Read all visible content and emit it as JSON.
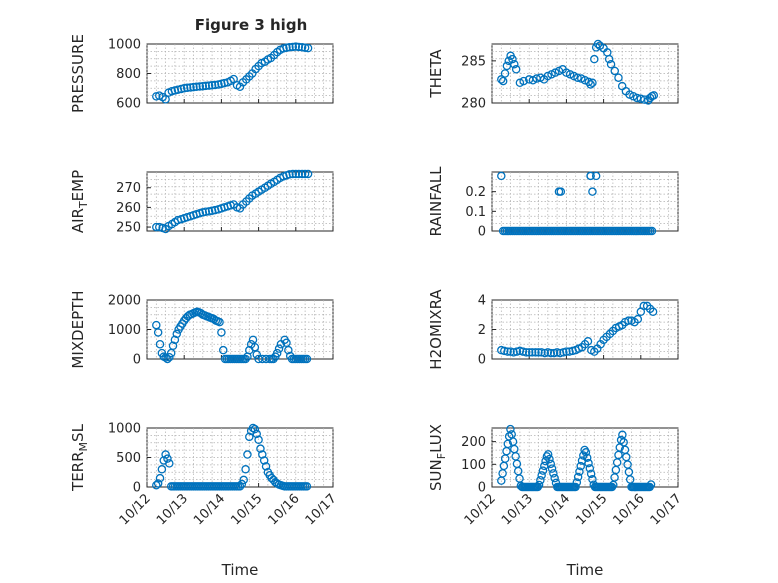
{
  "figure_title": "Figure 3 high",
  "x_axis": {
    "label": "Time",
    "ticks": [
      "10/12",
      "10/13",
      "10/14",
      "10/15",
      "10/16",
      "10/17"
    ],
    "range_days": [
      12,
      17
    ]
  },
  "chart_data": [
    {
      "type": "scatter",
      "id": "pressure",
      "ylabel": "PRESSURE",
      "ylim": [
        600,
        1000
      ],
      "yticks": [
        600,
        800,
        1000
      ],
      "marker_color": "#0072bd",
      "grid": "on",
      "x": [
        12.25,
        12.33,
        12.42,
        12.5,
        12.58,
        12.67,
        12.75,
        12.83,
        12.92,
        13.0,
        13.08,
        13.17,
        13.25,
        13.33,
        13.42,
        13.5,
        13.58,
        13.67,
        13.75,
        13.83,
        13.92,
        14.0,
        14.08,
        14.17,
        14.25,
        14.33,
        14.42,
        14.5,
        14.58,
        14.67,
        14.75,
        14.83,
        14.92,
        15.0,
        15.08,
        15.17,
        15.25,
        15.33,
        15.42,
        15.5,
        15.58,
        15.67,
        15.75,
        15.83,
        15.92,
        16.0,
        16.08,
        16.17,
        16.25,
        16.33
      ],
      "y": [
        645,
        650,
        640,
        625,
        670,
        680,
        685,
        690,
        695,
        700,
        703,
        705,
        708,
        710,
        712,
        714,
        716,
        718,
        720,
        722,
        725,
        730,
        735,
        740,
        750,
        762,
        720,
        710,
        740,
        760,
        780,
        800,
        830,
        850,
        870,
        880,
        895,
        905,
        925,
        945,
        960,
        970,
        975,
        978,
        980,
        982,
        980,
        978,
        975,
        972
      ]
    },
    {
      "type": "scatter",
      "id": "theta",
      "ylabel": "THETA",
      "ylim": [
        280,
        287
      ],
      "yticks": [
        280,
        285
      ],
      "marker_color": "#0072bd",
      "grid": "on",
      "x": [
        12.25,
        12.3,
        12.35,
        12.4,
        12.45,
        12.5,
        12.55,
        12.6,
        12.65,
        12.75,
        12.85,
        13.0,
        13.1,
        13.2,
        13.3,
        13.4,
        13.5,
        13.6,
        13.7,
        13.8,
        13.9,
        14.0,
        14.1,
        14.2,
        14.3,
        14.4,
        14.5,
        14.6,
        14.65,
        14.7,
        14.75,
        14.8,
        14.85,
        14.9,
        15.0,
        15.1,
        15.15,
        15.2,
        15.3,
        15.4,
        15.5,
        15.6,
        15.7,
        15.8,
        15.9,
        16.0,
        16.1,
        16.2,
        16.25,
        16.3,
        16.35
      ],
      "y": [
        282.8,
        282.6,
        283.5,
        284.4,
        285.0,
        285.6,
        285.2,
        284.6,
        284.0,
        282.4,
        282.6,
        282.8,
        282.7,
        282.9,
        283.0,
        282.8,
        283.2,
        283.4,
        283.6,
        283.8,
        284.0,
        283.6,
        283.4,
        283.2,
        283.0,
        282.9,
        282.7,
        282.5,
        282.2,
        282.4,
        285.2,
        286.6,
        287.0,
        286.8,
        286.5,
        286.0,
        285.2,
        284.6,
        283.8,
        283.0,
        282.0,
        281.4,
        281.0,
        280.8,
        280.6,
        280.5,
        280.4,
        280.3,
        280.6,
        280.8,
        280.9
      ]
    },
    {
      "type": "scatter",
      "id": "air_temp",
      "ylabel": "AIR",
      "ylabel_sub": "T",
      "ylabel_suffix": "EMP",
      "ylim": [
        248,
        278
      ],
      "yticks": [
        250,
        260,
        270
      ],
      "marker_color": "#0072bd",
      "grid": "on",
      "x": [
        12.25,
        12.33,
        12.42,
        12.5,
        12.58,
        12.67,
        12.75,
        12.83,
        12.92,
        13.0,
        13.08,
        13.17,
        13.25,
        13.33,
        13.42,
        13.5,
        13.58,
        13.67,
        13.75,
        13.83,
        13.92,
        14.0,
        14.08,
        14.17,
        14.25,
        14.33,
        14.42,
        14.5,
        14.58,
        14.67,
        14.75,
        14.83,
        14.92,
        15.0,
        15.08,
        15.17,
        15.25,
        15.33,
        15.42,
        15.5,
        15.58,
        15.67,
        15.75,
        15.83,
        15.92,
        16.0,
        16.08,
        16.17,
        16.25,
        16.33
      ],
      "y": [
        250,
        250,
        249.5,
        249,
        250.5,
        251.5,
        252.5,
        253.5,
        254,
        254.5,
        255,
        255.5,
        256,
        256.5,
        257,
        257.5,
        257.8,
        258,
        258.3,
        258.6,
        259,
        259.5,
        260,
        260.5,
        261,
        261.5,
        260,
        259.5,
        261.5,
        263,
        264.5,
        266,
        267,
        268,
        269,
        270,
        271,
        272,
        273,
        274,
        275,
        275.8,
        276.3,
        276.8,
        277,
        277,
        277,
        277,
        277,
        277
      ]
    },
    {
      "type": "scatter",
      "id": "rainfall",
      "ylabel": "RAINFALL",
      "ylim": [
        0,
        0.3
      ],
      "yticks": [
        0,
        0.1,
        0.2
      ],
      "marker_color": "#0072bd",
      "grid": "on",
      "x": [
        12.25,
        12.3,
        12.35,
        12.4,
        12.45,
        12.5,
        12.55,
        12.6,
        12.65,
        12.7,
        12.75,
        12.8,
        12.85,
        12.9,
        12.95,
        13.0,
        13.05,
        13.1,
        13.15,
        13.2,
        13.25,
        13.3,
        13.35,
        13.4,
        13.45,
        13.5,
        13.55,
        13.6,
        13.65,
        13.7,
        13.75,
        13.8,
        13.85,
        13.9,
        13.95,
        14.0,
        14.05,
        14.1,
        14.15,
        14.2,
        14.25,
        14.3,
        14.35,
        14.4,
        14.45,
        14.5,
        14.55,
        14.6,
        14.65,
        14.7,
        14.75,
        14.8,
        14.85,
        14.9,
        14.95,
        15.0,
        15.05,
        15.1,
        15.15,
        15.2,
        15.25,
        15.3,
        15.35,
        15.4,
        15.45,
        15.5,
        15.55,
        15.6,
        15.65,
        15.7,
        15.75,
        15.8,
        15.85,
        15.9,
        15.95,
        16.0,
        16.05,
        16.1,
        16.15,
        16.2,
        16.25,
        16.3,
        13.8,
        13.85,
        14.65,
        14.7,
        14.65,
        14.8
      ],
      "y": [
        0.28,
        0,
        0,
        0,
        0,
        0,
        0,
        0,
        0,
        0,
        0,
        0,
        0,
        0,
        0,
        0,
        0,
        0,
        0,
        0,
        0,
        0,
        0,
        0,
        0,
        0,
        0,
        0,
        0,
        0,
        0,
        0,
        0,
        0,
        0,
        0,
        0,
        0,
        0,
        0,
        0,
        0,
        0,
        0,
        0,
        0,
        0,
        0,
        0,
        0,
        0,
        0,
        0,
        0,
        0,
        0,
        0,
        0,
        0,
        0,
        0,
        0,
        0,
        0,
        0,
        0,
        0,
        0,
        0,
        0,
        0,
        0,
        0,
        0,
        0,
        0,
        0,
        0,
        0,
        0,
        0,
        0,
        0.2,
        0.2,
        0.28,
        0.2,
        0.28,
        0.28
      ]
    },
    {
      "type": "scatter",
      "id": "mixdepth",
      "ylabel": "MIXDEPTH",
      "ylim": [
        0,
        2000
      ],
      "yticks": [
        0,
        1000,
        2000
      ],
      "marker_color": "#0072bd",
      "grid": "on",
      "x": [
        12.25,
        12.3,
        12.35,
        12.4,
        12.45,
        12.5,
        12.55,
        12.6,
        12.65,
        12.7,
        12.75,
        12.8,
        12.85,
        12.9,
        12.95,
        13.0,
        13.05,
        13.1,
        13.15,
        13.2,
        13.25,
        13.3,
        13.35,
        13.4,
        13.45,
        13.5,
        13.55,
        13.6,
        13.65,
        13.7,
        13.75,
        13.8,
        13.85,
        13.9,
        13.95,
        14.0,
        14.05,
        14.1,
        14.15,
        14.2,
        14.25,
        14.3,
        14.35,
        14.4,
        14.45,
        14.5,
        14.55,
        14.6,
        14.65,
        14.7,
        14.75,
        14.8,
        14.85,
        14.9,
        14.95,
        15.0,
        15.1,
        15.2,
        15.3,
        15.35,
        15.4,
        15.45,
        15.5,
        15.55,
        15.6,
        15.7,
        15.75,
        15.8,
        15.85,
        15.9,
        15.95,
        16.0,
        16.05,
        16.1,
        16.15,
        16.2,
        16.25,
        16.3
      ],
      "y": [
        1150,
        900,
        500,
        200,
        80,
        50,
        0,
        60,
        200,
        450,
        650,
        850,
        1000,
        1100,
        1200,
        1300,
        1380,
        1450,
        1500,
        1520,
        1550,
        1580,
        1600,
        1580,
        1550,
        1500,
        1480,
        1450,
        1430,
        1400,
        1380,
        1350,
        1300,
        1280,
        1250,
        900,
        300,
        0,
        0,
        0,
        0,
        0,
        0,
        0,
        0,
        0,
        0,
        0,
        0,
        80,
        300,
        500,
        650,
        400,
        150,
        0,
        0,
        0,
        0,
        0,
        0,
        80,
        200,
        350,
        500,
        650,
        550,
        300,
        100,
        0,
        0,
        0,
        0,
        0,
        0,
        0,
        0,
        0
      ]
    },
    {
      "type": "scatter",
      "id": "h2omixra",
      "ylabel": "H2OMIXRA",
      "ylim": [
        0,
        4
      ],
      "yticks": [
        0,
        2,
        4
      ],
      "marker_color": "#0072bd",
      "grid": "on",
      "x": [
        12.25,
        12.33,
        12.42,
        12.5,
        12.58,
        12.67,
        12.75,
        12.83,
        12.92,
        13.0,
        13.08,
        13.17,
        13.25,
        13.33,
        13.42,
        13.5,
        13.58,
        13.67,
        13.75,
        13.83,
        13.92,
        14.0,
        14.08,
        14.17,
        14.25,
        14.33,
        14.42,
        14.5,
        14.58,
        14.67,
        14.75,
        14.83,
        14.92,
        15.0,
        15.08,
        15.17,
        15.25,
        15.33,
        15.42,
        15.5,
        15.58,
        15.67,
        15.75,
        15.83,
        15.92,
        16.0,
        16.08,
        16.17,
        16.25,
        16.33
      ],
      "y": [
        0.6,
        0.55,
        0.5,
        0.5,
        0.45,
        0.5,
        0.55,
        0.5,
        0.45,
        0.45,
        0.45,
        0.45,
        0.45,
        0.45,
        0.4,
        0.45,
        0.4,
        0.4,
        0.45,
        0.4,
        0.45,
        0.5,
        0.5,
        0.55,
        0.6,
        0.7,
        0.8,
        1.0,
        1.2,
        0.6,
        0.5,
        0.7,
        1.0,
        1.3,
        1.5,
        1.7,
        1.9,
        2.1,
        2.2,
        2.3,
        2.5,
        2.6,
        2.6,
        2.5,
        2.7,
        3.2,
        3.6,
        3.6,
        3.4,
        3.2
      ]
    },
    {
      "type": "scatter",
      "id": "terr_msl",
      "ylabel": "TERR",
      "ylabel_sub": "M",
      "ylabel_suffix": "SL",
      "ylim": [
        0,
        1000
      ],
      "yticks": [
        0,
        500,
        1000
      ],
      "marker_color": "#0072bd",
      "grid": "on",
      "x": [
        12.25,
        12.3,
        12.35,
        12.4,
        12.45,
        12.5,
        12.55,
        12.6,
        12.65,
        12.7,
        12.75,
        12.8,
        12.85,
        12.9,
        12.95,
        13.0,
        13.05,
        13.1,
        13.15,
        13.2,
        13.25,
        13.3,
        13.35,
        13.4,
        13.45,
        13.5,
        13.55,
        13.6,
        13.65,
        13.7,
        13.75,
        13.8,
        13.85,
        13.9,
        13.95,
        14.0,
        14.05,
        14.1,
        14.15,
        14.2,
        14.25,
        14.3,
        14.35,
        14.4,
        14.45,
        14.5,
        14.55,
        14.6,
        14.65,
        14.7,
        14.75,
        14.8,
        14.85,
        14.9,
        14.95,
        15.0,
        15.05,
        15.1,
        15.15,
        15.2,
        15.25,
        15.3,
        15.35,
        15.4,
        15.45,
        15.5,
        15.55,
        15.6,
        15.65,
        15.7,
        15.75,
        15.8,
        15.85,
        15.9,
        15.95,
        16.0,
        16.05,
        16.1,
        16.15,
        16.2,
        16.25,
        16.3
      ],
      "y": [
        30,
        60,
        150,
        300,
        450,
        550,
        480,
        400,
        10,
        10,
        10,
        10,
        10,
        10,
        10,
        10,
        10,
        10,
        10,
        10,
        10,
        10,
        10,
        10,
        10,
        10,
        10,
        10,
        10,
        10,
        10,
        10,
        10,
        10,
        10,
        10,
        10,
        10,
        10,
        10,
        10,
        10,
        10,
        10,
        10,
        10,
        50,
        120,
        300,
        550,
        850,
        950,
        1000,
        980,
        900,
        800,
        650,
        550,
        450,
        350,
        250,
        200,
        150,
        120,
        80,
        60,
        40,
        30,
        20,
        10,
        10,
        10,
        10,
        10,
        10,
        10,
        10,
        10,
        10,
        10,
        10,
        10
      ]
    },
    {
      "type": "scatter",
      "id": "sun_flux",
      "ylabel": "SUN",
      "ylabel_sub": "F",
      "ylabel_suffix": "LUX",
      "ylim": [
        0,
        260
      ],
      "yticks": [
        0,
        100,
        200
      ],
      "marker_color": "#0072bd",
      "grid": "on",
      "x": [
        12.25,
        12.3,
        12.35,
        12.4,
        12.45,
        12.5,
        12.55,
        12.6,
        12.65,
        12.7,
        12.75,
        12.8,
        12.85,
        12.9,
        12.95,
        13.0,
        13.05,
        13.1,
        13.15,
        13.2,
        13.25,
        13.3,
        13.35,
        13.4,
        13.45,
        13.5,
        13.55,
        13.6,
        13.65,
        13.7,
        13.75,
        13.8,
        13.85,
        13.9,
        13.95,
        14.0,
        14.05,
        14.1,
        14.15,
        14.2,
        14.25,
        14.3,
        14.35,
        14.4,
        14.45,
        14.5,
        14.55,
        14.6,
        14.65,
        14.7,
        14.75,
        14.8,
        14.85,
        14.9,
        14.95,
        15.0,
        15.05,
        15.1,
        15.15,
        15.2,
        15.25,
        15.3,
        15.35,
        15.4,
        15.45,
        15.5,
        15.55,
        15.6,
        15.65,
        15.7,
        15.75,
        15.8,
        15.85,
        15.9,
        15.95,
        16.0,
        16.05,
        16.1,
        16.15,
        16.2,
        16.25,
        16.3
      ],
      "y": [
        0,
        20,
        70,
        140,
        200,
        260,
        250,
        200,
        140,
        90,
        50,
        10,
        0,
        0,
        0,
        0,
        0,
        0,
        0,
        0,
        0,
        0,
        0,
        0,
        0,
        0,
        0,
        0,
        0,
        0,
        0,
        0,
        0,
        0,
        0,
        0,
        0,
        0,
        0,
        0,
        0,
        0,
        0,
        0,
        0,
        0,
        0,
        0,
        0,
        0,
        0,
        0,
        0,
        0,
        0,
        0,
        0,
        0,
        0,
        0,
        0,
        0,
        0,
        0,
        0,
        0,
        0,
        0,
        0,
        0,
        0,
        0,
        0,
        0,
        0,
        0,
        0,
        0,
        0,
        0,
        0,
        0
      ]
    }
  ]
}
